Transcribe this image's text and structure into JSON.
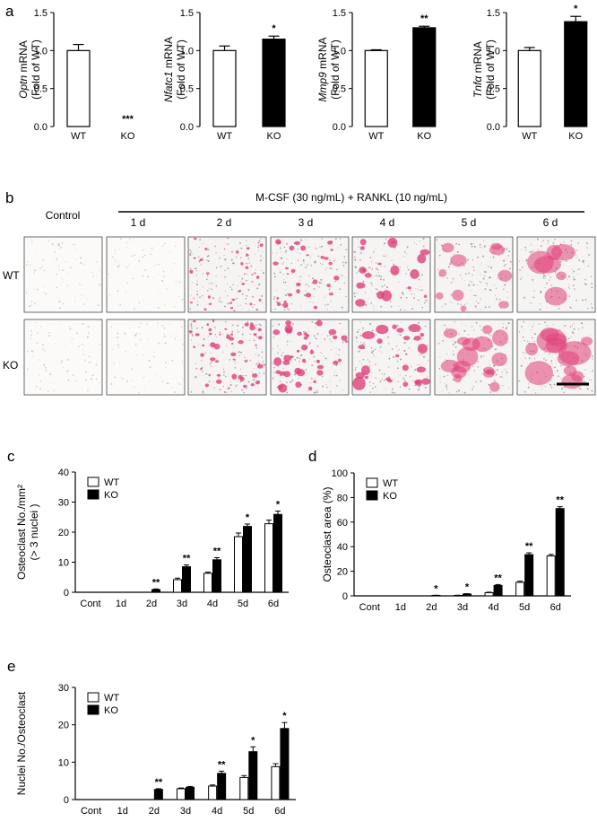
{
  "panel_labels": {
    "a": "a",
    "b": "b",
    "c": "c",
    "d": "d",
    "e": "e"
  },
  "colors": {
    "wt": "#ffffff",
    "ko": "#000000",
    "stain": "#e0407a",
    "paper": "#f6f4f2"
  },
  "panel_b": {
    "treatment_label": "M-CSF (30 ng/mL) + RANKL (10 ng/mL)",
    "control_label": "Control",
    "day_labels": [
      "1 d",
      "2 d",
      "3 d",
      "4 d",
      "5 d",
      "6 d"
    ],
    "row_labels": [
      "WT",
      "KO"
    ]
  },
  "chart_data": [
    {
      "type": "bar",
      "panel": "a",
      "categories": [
        "WT",
        "KO"
      ],
      "values": [
        1.0,
        0.0
      ],
      "errors": [
        0.08,
        0.0
      ],
      "significance": [
        "",
        "***"
      ],
      "ylabel_lines": [
        "Optn mRNA",
        "(Fold of WT)"
      ],
      "ylim": [
        0,
        1.5
      ],
      "yticks": [
        "0.0",
        "0.5",
        "1.0",
        "1.5"
      ]
    },
    {
      "type": "bar",
      "panel": "a",
      "categories": [
        "WT",
        "KO"
      ],
      "values": [
        1.0,
        1.15
      ],
      "errors": [
        0.06,
        0.04
      ],
      "significance": [
        "",
        "*"
      ],
      "ylabel_lines": [
        "Nfatc1 mRNA",
        "(Fold of WT)"
      ],
      "ylim": [
        0,
        1.5
      ],
      "yticks": [
        "0.0",
        "0.5",
        "1.0",
        "1.5"
      ]
    },
    {
      "type": "bar",
      "panel": "a",
      "categories": [
        "WT",
        "KO"
      ],
      "values": [
        1.0,
        1.3
      ],
      "errors": [
        0.01,
        0.02
      ],
      "significance": [
        "",
        "**"
      ],
      "ylabel_lines": [
        "Mmp9 mRNA",
        "(Fold of WT)"
      ],
      "ylim": [
        0,
        1.5
      ],
      "yticks": [
        "0.0",
        "0.5",
        "1.0",
        "1.5"
      ]
    },
    {
      "type": "bar",
      "panel": "a",
      "categories": [
        "WT",
        "KO"
      ],
      "values": [
        1.0,
        1.38
      ],
      "errors": [
        0.04,
        0.07
      ],
      "significance": [
        "",
        "*"
      ],
      "ylabel_lines": [
        "Tnfα mRNA",
        "(Fold of WT)"
      ],
      "ylim": [
        0,
        1.5
      ],
      "yticks": [
        "0.0",
        "0.5",
        "1.0",
        "1.5"
      ]
    },
    {
      "type": "bar",
      "panel": "c",
      "categories": [
        "Cont",
        "1d",
        "2d",
        "3d",
        "4d",
        "5d",
        "6d"
      ],
      "series": [
        {
          "name": "WT",
          "values": [
            0,
            0,
            0,
            4.2,
            6.3,
            18.5,
            22.8
          ],
          "errors": [
            0,
            0,
            0,
            0.5,
            0.4,
            1.2,
            1.2
          ]
        },
        {
          "name": "KO",
          "values": [
            0,
            0,
            0.9,
            8.5,
            10.8,
            21.9,
            25.9
          ],
          "errors": [
            0,
            0,
            0.2,
            0.6,
            0.7,
            0.8,
            1.1
          ]
        }
      ],
      "significance": [
        "",
        "",
        "**",
        "**",
        "**",
        "*",
        "*"
      ],
      "ylabel_lines": [
        "Osteoclast No./mm²",
        "(> 3 nuclei )"
      ],
      "ylim": [
        0,
        40
      ],
      "yticks": [
        "0",
        "10",
        "20",
        "30",
        "40"
      ]
    },
    {
      "type": "bar",
      "panel": "d",
      "categories": [
        "Cont",
        "1d",
        "2d",
        "3d",
        "4d",
        "5d",
        "6d"
      ],
      "series": [
        {
          "name": "WT",
          "values": [
            0,
            0,
            0,
            0.4,
            2.6,
            11.0,
            32.5
          ],
          "errors": [
            0,
            0,
            0,
            0.1,
            0.4,
            0.9,
            1.2
          ]
        },
        {
          "name": "KO",
          "values": [
            0,
            0,
            0.4,
            1.5,
            8.5,
            33.5,
            71.0
          ],
          "errors": [
            0,
            0,
            0.1,
            0.3,
            0.7,
            1.5,
            1.5
          ]
        }
      ],
      "significance": [
        "",
        "",
        "*",
        "*",
        "**",
        "**",
        "**"
      ],
      "ylabel_lines": [
        "Osteoclast area (%)"
      ],
      "ylim": [
        0,
        100
      ],
      "yticks": [
        "0",
        "20",
        "40",
        "60",
        "80",
        "100"
      ]
    },
    {
      "type": "bar",
      "panel": "e",
      "categories": [
        "Cont",
        "1d",
        "2d",
        "3d",
        "4d",
        "5d",
        "6d"
      ],
      "series": [
        {
          "name": "WT",
          "values": [
            0,
            0,
            0,
            2.9,
            3.6,
            5.9,
            8.8
          ],
          "errors": [
            0,
            0,
            0,
            0.2,
            0.3,
            0.5,
            0.8
          ]
        },
        {
          "name": "KO",
          "values": [
            0,
            0,
            2.7,
            3.3,
            7.0,
            12.8,
            19.0
          ],
          "errors": [
            0,
            0,
            0.2,
            0.2,
            0.6,
            1.3,
            1.6
          ]
        }
      ],
      "significance": [
        "",
        "",
        "**",
        "",
        "**",
        "*",
        "*"
      ],
      "ylabel_lines": [
        "Nuclei No./Osteoclast"
      ],
      "ylim": [
        0,
        30
      ],
      "yticks": [
        "0",
        "10",
        "20",
        "30"
      ]
    }
  ]
}
